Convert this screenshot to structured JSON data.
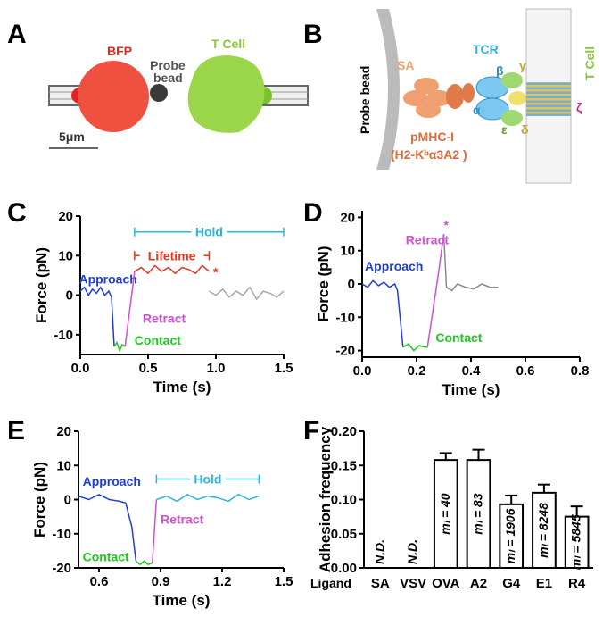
{
  "panel_labels": [
    "A",
    "B",
    "C",
    "D",
    "E",
    "F"
  ],
  "panel_a": {
    "cell_left": "BFP",
    "bead": [
      "Probe",
      "bead"
    ],
    "cell_right": "T Cell",
    "scale": "5μm"
  },
  "panel_b": {
    "bead": "Probe bead",
    "sa": "SA",
    "tcr": "TCR",
    "pmhc": "pMHC-I",
    "pmhc_detail": "(H2-Kᵇα3A2 )",
    "cell": "T Cell",
    "chains": [
      "β",
      "α",
      "γ",
      "ε",
      "δ",
      "ζ"
    ]
  },
  "chart_data": [
    {
      "type": "line",
      "xlabel": "Time (s)",
      "ylabel": "Force (pN)",
      "xlim": [
        0,
        1.5
      ],
      "xticks": [
        {
          "value": 0,
          "label": "0.0"
        },
        0.5,
        {
          "value": 1,
          "label": "1.0"
        },
        1.5
      ],
      "ylim": [
        -15,
        20
      ],
      "yticks": [
        -10,
        0,
        10,
        20
      ],
      "series": [
        {
          "name": "Approach",
          "color": "#1f3ed8",
          "x": [
            0,
            0.03,
            0.06,
            0.09,
            0.12,
            0.15,
            0.18,
            0.21,
            0.23,
            0.25
          ],
          "values": [
            1,
            2,
            0,
            1.5,
            0.5,
            2,
            0,
            1,
            -0.5,
            -13
          ]
        },
        {
          "name": "Contact",
          "color": "#1ec81e",
          "x": [
            0.25,
            0.27,
            0.29,
            0.31,
            0.33
          ],
          "values": [
            -13,
            -12,
            -14,
            -12.5,
            -13
          ]
        },
        {
          "name": "Retract",
          "color": "#d24fd2",
          "x": [
            0.33,
            0.36,
            0.39,
            0.4
          ],
          "values": [
            -13,
            -5,
            3,
            6
          ]
        },
        {
          "color": "#e8341c",
          "x": [
            0.4,
            0.45,
            0.5,
            0.55,
            0.6,
            0.65,
            0.7,
            0.75,
            0.8,
            0.85,
            0.9,
            0.95
          ],
          "values": [
            6,
            7,
            5.5,
            7.5,
            6,
            7,
            5.5,
            7,
            6.5,
            5.5,
            7.5,
            6
          ]
        },
        {
          "color": "#a8a8a8",
          "x": [
            0.95,
            1.0,
            1.05,
            1.1,
            1.15,
            1.2,
            1.25,
            1.3,
            1.35,
            1.4,
            1.45,
            1.5
          ],
          "values": [
            1,
            0,
            1.5,
            -0.5,
            1,
            0,
            2,
            -1,
            1,
            0.5,
            -0.5,
            1
          ]
        }
      ],
      "spans": [
        {
          "label": "Lifetime",
          "x": [
            0.4,
            0.95
          ],
          "y": 10,
          "color": "#e8341c"
        },
        {
          "label": "Hold",
          "x": [
            0.4,
            1.5
          ],
          "y": 16,
          "color": "#2ab4e0"
        }
      ],
      "markers": [
        {
          "label": "*",
          "x": 0.98,
          "y": 7,
          "color": "#e8341c"
        }
      ]
    },
    {
      "type": "line",
      "xlabel": "Time (s)",
      "ylabel": "Force (pN)",
      "xlim": [
        0,
        0.8
      ],
      "xticks": [
        {
          "value": 0,
          "label": "0.0"
        },
        0.2,
        0.4,
        0.6,
        0.8
      ],
      "ylim": [
        -22,
        22
      ],
      "yticks": [
        -20,
        -10,
        0,
        10,
        20
      ],
      "series": [
        {
          "name": "Approach",
          "color": "#1f3ed8",
          "x": [
            0,
            0.02,
            0.04,
            0.06,
            0.08,
            0.1,
            0.12,
            0.13,
            0.15
          ],
          "values": [
            0,
            -1,
            1,
            -0.5,
            0.5,
            -1,
            0,
            -2,
            -19
          ]
        },
        {
          "name": "Contact",
          "color": "#1ec81e",
          "x": [
            0.15,
            0.17,
            0.19,
            0.21,
            0.23,
            0.24
          ],
          "values": [
            -19,
            -18,
            -20,
            -18.5,
            -19,
            -19
          ]
        },
        {
          "name": "Retract",
          "color": "#d24fd2",
          "x": [
            0.24,
            0.26,
            0.28,
            0.3
          ],
          "values": [
            -19,
            -8,
            3,
            15
          ]
        },
        {
          "color": "#8a8a8a",
          "x": [
            0.3,
            0.31,
            0.33,
            0.35,
            0.38,
            0.41,
            0.44,
            0.47,
            0.5
          ],
          "values": [
            15,
            -1,
            -2,
            0,
            -1,
            -1.5,
            0,
            -1,
            -1
          ]
        }
      ],
      "spans": [],
      "markers": [
        {
          "label": "*",
          "x": 0.3,
          "y": 19,
          "color": "#d24fd2"
        }
      ]
    },
    {
      "type": "line",
      "xlabel": "Time (s)",
      "ylabel": "Force (pN)",
      "xlim": [
        0.5,
        1.5
      ],
      "xticks": [
        0.6,
        0.9,
        1.2,
        1.5
      ],
      "ylim": [
        -20,
        20
      ],
      "yticks": [
        -20,
        -10,
        0,
        10,
        20
      ],
      "series": [
        {
          "name": "Approach",
          "color": "#1f3ed8",
          "x": [
            0.5,
            0.55,
            0.6,
            0.65,
            0.7,
            0.73,
            0.76,
            0.78
          ],
          "values": [
            1,
            0,
            1.5,
            0,
            -0.5,
            -1,
            -8,
            -18
          ]
        },
        {
          "name": "Contact",
          "color": "#1ec81e",
          "x": [
            0.78,
            0.8,
            0.82,
            0.84,
            0.86
          ],
          "values": [
            -18,
            -19,
            -18,
            -19,
            -18.5
          ]
        },
        {
          "name": "Retract",
          "color": "#d24fd2",
          "x": [
            0.86,
            0.87,
            0.88
          ],
          "values": [
            -18.5,
            -9,
            0
          ]
        },
        {
          "color": "#2ab4e0",
          "x": [
            0.88,
            0.93,
            0.98,
            1.03,
            1.08,
            1.13,
            1.18,
            1.23,
            1.28,
            1.33,
            1.38
          ],
          "values": [
            0,
            1,
            -0.5,
            1.5,
            0,
            1,
            0.5,
            -0.5,
            1.5,
            0,
            1
          ]
        }
      ],
      "spans": [
        {
          "label": "Hold",
          "x": [
            0.88,
            1.38
          ],
          "y": 6,
          "color": "#2ab4e0"
        }
      ],
      "markers": []
    },
    {
      "type": "bar",
      "xlabel": "Ligand",
      "ylabel": "Adhesion frequency",
      "categories": [
        "SA",
        "VSV",
        "OVA",
        "A2",
        "G4",
        "E1",
        "R4"
      ],
      "values": [
        null,
        null,
        0.158,
        0.158,
        0.093,
        0.11,
        0.075
      ],
      "errors": [
        null,
        null,
        0.01,
        0.015,
        0.013,
        0.012,
        0.015
      ],
      "bar_labels": [
        "N.D.",
        "N.D.",
        "mₗ = 40",
        "mₗ = 83",
        "mₗ = 1906",
        "mₗ = 8248",
        "mₗ = 5845"
      ],
      "ylim": [
        0,
        0.2
      ],
      "yticks": [
        {
          "value": 0,
          "label": "0.00"
        },
        {
          "value": 0.05,
          "label": "0.05"
        },
        {
          "value": 0.1,
          "label": "0.10"
        },
        {
          "value": 0.15,
          "label": "0.15"
        },
        {
          "value": 0.2,
          "label": "0.20"
        }
      ]
    }
  ]
}
